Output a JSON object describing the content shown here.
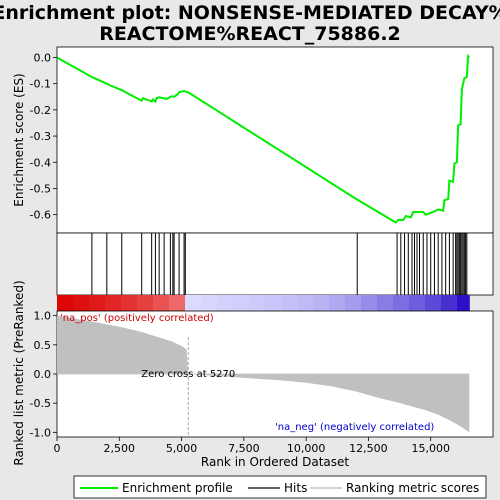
{
  "chart_data": {
    "type": "line",
    "title_line1": "Enrichment plot: NONSENSE-MEDIATED DECAY%",
    "title_line2": "REACTOME%REACT_75886.2",
    "es_panel": {
      "ylabel": "Enrichment score (ES)",
      "ylim": [
        -0.67,
        0.04
      ],
      "yticks": [
        0.0,
        -0.1,
        -0.2,
        -0.3,
        -0.4,
        -0.5,
        -0.6
      ],
      "ytick_labels": [
        "0.0",
        "-0.1",
        "-0.2",
        "-0.3",
        "-0.4",
        "-0.5",
        "-0.6"
      ],
      "line_color": "#00ee00",
      "points": [
        [
          0,
          0.0
        ],
        [
          1400,
          -0.075
        ],
        [
          2000,
          -0.1
        ],
        [
          2100,
          -0.105
        ],
        [
          2600,
          -0.125
        ],
        [
          3400,
          -0.165
        ],
        [
          3450,
          -0.155
        ],
        [
          3800,
          -0.168
        ],
        [
          3850,
          -0.16
        ],
        [
          3950,
          -0.168
        ],
        [
          4000,
          -0.155
        ],
        [
          4100,
          -0.152
        ],
        [
          4400,
          -0.158
        ],
        [
          4600,
          -0.148
        ],
        [
          4700,
          -0.15
        ],
        [
          4850,
          -0.14
        ],
        [
          4900,
          -0.132
        ],
        [
          5100,
          -0.128
        ],
        [
          5300,
          -0.135
        ],
        [
          12000,
          -0.54
        ],
        [
          13600,
          -0.63
        ],
        [
          13700,
          -0.62
        ],
        [
          13900,
          -0.62
        ],
        [
          14000,
          -0.605
        ],
        [
          14200,
          -0.61
        ],
        [
          14300,
          -0.59
        ],
        [
          14500,
          -0.59
        ],
        [
          14700,
          -0.59
        ],
        [
          14800,
          -0.6
        ],
        [
          15100,
          -0.59
        ],
        [
          15300,
          -0.58
        ],
        [
          15500,
          -0.585
        ],
        [
          15550,
          -0.545
        ],
        [
          15700,
          -0.54
        ],
        [
          15750,
          -0.47
        ],
        [
          15900,
          -0.475
        ],
        [
          15950,
          -0.405
        ],
        [
          16050,
          -0.4
        ],
        [
          16100,
          -0.26
        ],
        [
          16200,
          -0.255
        ],
        [
          16250,
          -0.12
        ],
        [
          16350,
          -0.08
        ],
        [
          16450,
          -0.075
        ],
        [
          16500,
          0.005
        ],
        [
          16550,
          0.0
        ]
      ]
    },
    "hits": [
      1400,
      2000,
      2600,
      3400,
      3800,
      3950,
      4100,
      4300,
      4550,
      4650,
      4700,
      4900,
      5100,
      5150,
      12050,
      13650,
      13800,
      13950,
      14100,
      14250,
      14350,
      14450,
      14550,
      14700,
      14850,
      15000,
      15150,
      15300,
      15450,
      15600,
      15750,
      15900,
      16000,
      16050,
      16100,
      16150,
      16200,
      16250,
      16300,
      16350,
      16400,
      16450
    ],
    "rank_panel": {
      "ylabel": "Ranked list metric (PreRanked)",
      "xlabel": "Rank in Ordered Dataset",
      "xlim": [
        0,
        17500
      ],
      "ylim": [
        -1.08,
        1.08
      ],
      "xticks": [
        0,
        2500,
        5000,
        7500,
        10000,
        12500,
        15000
      ],
      "xtick_labels": [
        "0",
        "2,500",
        "5,000",
        "7,500",
        "10,000",
        "12,500",
        "15,000"
      ],
      "yticks": [
        1.0,
        0.5,
        0.0,
        -0.5,
        -1.0
      ],
      "ytick_labels": [
        "1.0",
        "0.5",
        "0.0",
        "-0.5",
        "-1.0"
      ],
      "zero_cross_rank": 5270,
      "zero_cross_label": "Zero cross at 5270",
      "pos_label": "'na_pos' (positively correlated)",
      "neg_label": "'na_neg' (negatively correlated)",
      "metric_profile": [
        [
          0,
          1.0
        ],
        [
          300,
          0.98
        ],
        [
          700,
          0.95
        ],
        [
          1400,
          0.9
        ],
        [
          2000,
          0.85
        ],
        [
          2600,
          0.8
        ],
        [
          3400,
          0.72
        ],
        [
          4000,
          0.64
        ],
        [
          4600,
          0.56
        ],
        [
          5000,
          0.48
        ],
        [
          5200,
          0.42
        ],
        [
          5270,
          0.0
        ],
        [
          6500,
          -0.04
        ],
        [
          8000,
          -0.08
        ],
        [
          9000,
          -0.11
        ],
        [
          10000,
          -0.15
        ],
        [
          11000,
          -0.21
        ],
        [
          12000,
          -0.3
        ],
        [
          13000,
          -0.42
        ],
        [
          13600,
          -0.48
        ],
        [
          14200,
          -0.55
        ],
        [
          14800,
          -0.62
        ],
        [
          15300,
          -0.7
        ],
        [
          15800,
          -0.8
        ],
        [
          16200,
          -0.9
        ],
        [
          16550,
          -1.0
        ]
      ],
      "total_rank": 16550
    },
    "legend": [
      {
        "label": "Enrichment profile",
        "color": "#00ee00"
      },
      {
        "label": "Hits",
        "color": "#000000"
      },
      {
        "label": "Ranking metric scores",
        "color": "#bbbbbb"
      }
    ],
    "colors": {
      "bar_red": "#dd0000",
      "bar_blue": "#2200bb",
      "fill_gray": "#c0c0c0",
      "zero_line": "#c8c8c8"
    }
  }
}
